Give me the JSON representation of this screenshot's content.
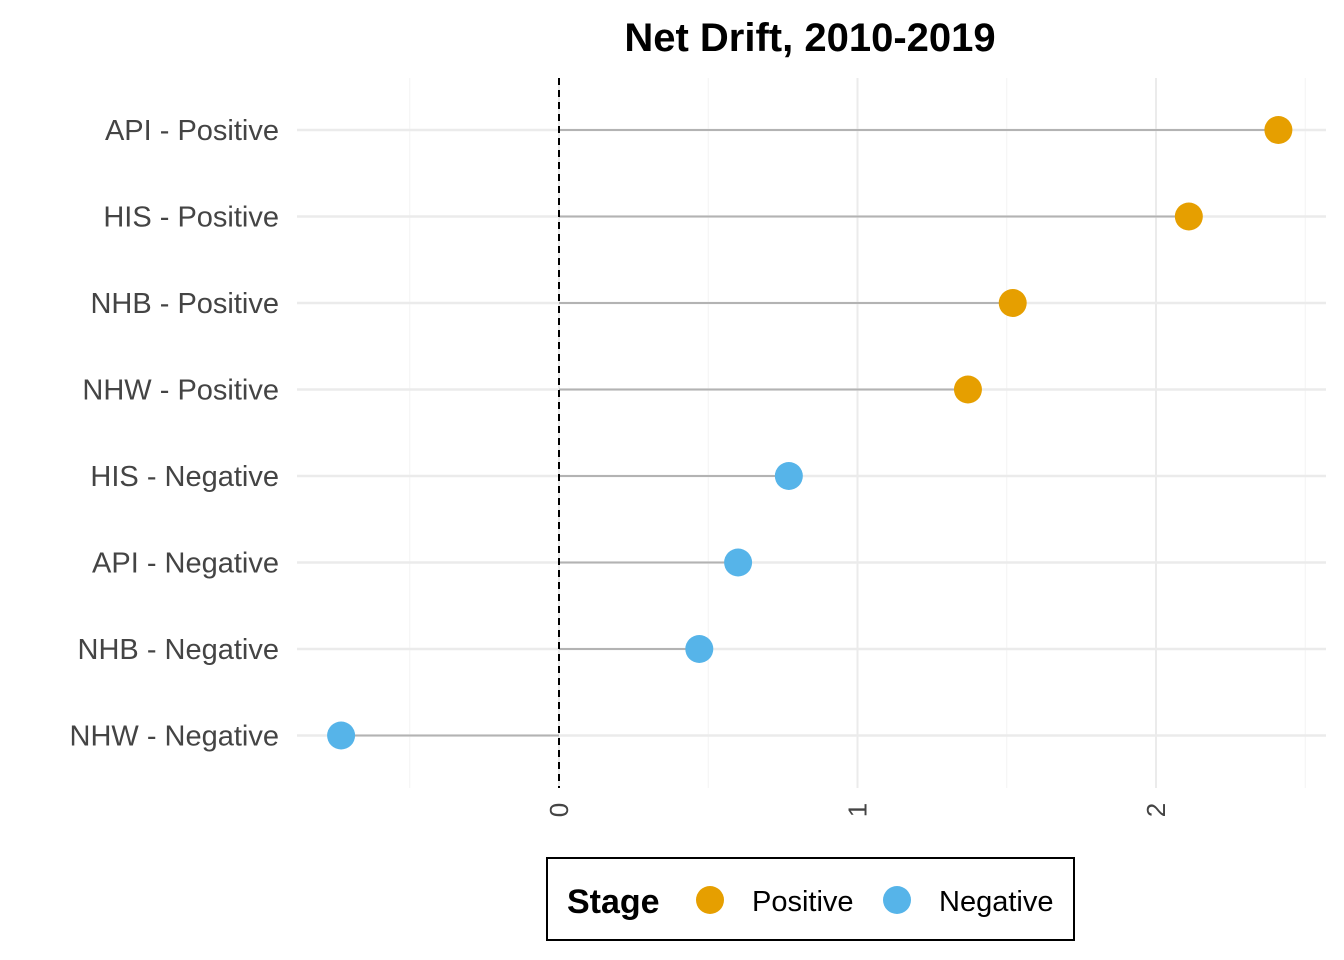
{
  "chart_data": {
    "type": "scatter",
    "subtype": "lollipop",
    "title": "Net Drift, 2010-2019",
    "xlabel": "",
    "ylabel": "",
    "xlim": [
      -0.5,
      2.5
    ],
    "x_ticks": [
      "0",
      "1",
      "2"
    ],
    "x_tick_values": [
      0,
      1,
      2
    ],
    "x_tick_label_rotation": "vertical",
    "reference_line": {
      "x": 0,
      "style": "dashed"
    },
    "grid": true,
    "categories": [
      "API - Positive",
      "HIS - Positive",
      "NHB - Positive",
      "NHW - Positive",
      "HIS - Negative",
      "API - Negative",
      "NHB - Negative",
      "NHW - Negative"
    ],
    "points": [
      {
        "label": "API - Positive",
        "value": 2.41,
        "stage": "Positive"
      },
      {
        "label": "HIS - Positive",
        "value": 2.11,
        "stage": "Positive"
      },
      {
        "label": "NHB - Positive",
        "value": 1.52,
        "stage": "Positive"
      },
      {
        "label": "NHW - Positive",
        "value": 1.37,
        "stage": "Positive"
      },
      {
        "label": "HIS - Negative",
        "value": 0.77,
        "stage": "Negative"
      },
      {
        "label": "API - Negative",
        "value": 0.6,
        "stage": "Negative"
      },
      {
        "label": "NHB - Negative",
        "value": 0.47,
        "stage": "Negative"
      },
      {
        "label": "NHW - Negative",
        "value": -0.73,
        "stage": "Negative"
      }
    ],
    "legend": {
      "title": "Stage",
      "position": "bottom",
      "items": [
        {
          "label": "Positive",
          "color": "#E69F00"
        },
        {
          "label": "Negative",
          "color": "#56B4E9"
        }
      ]
    }
  }
}
